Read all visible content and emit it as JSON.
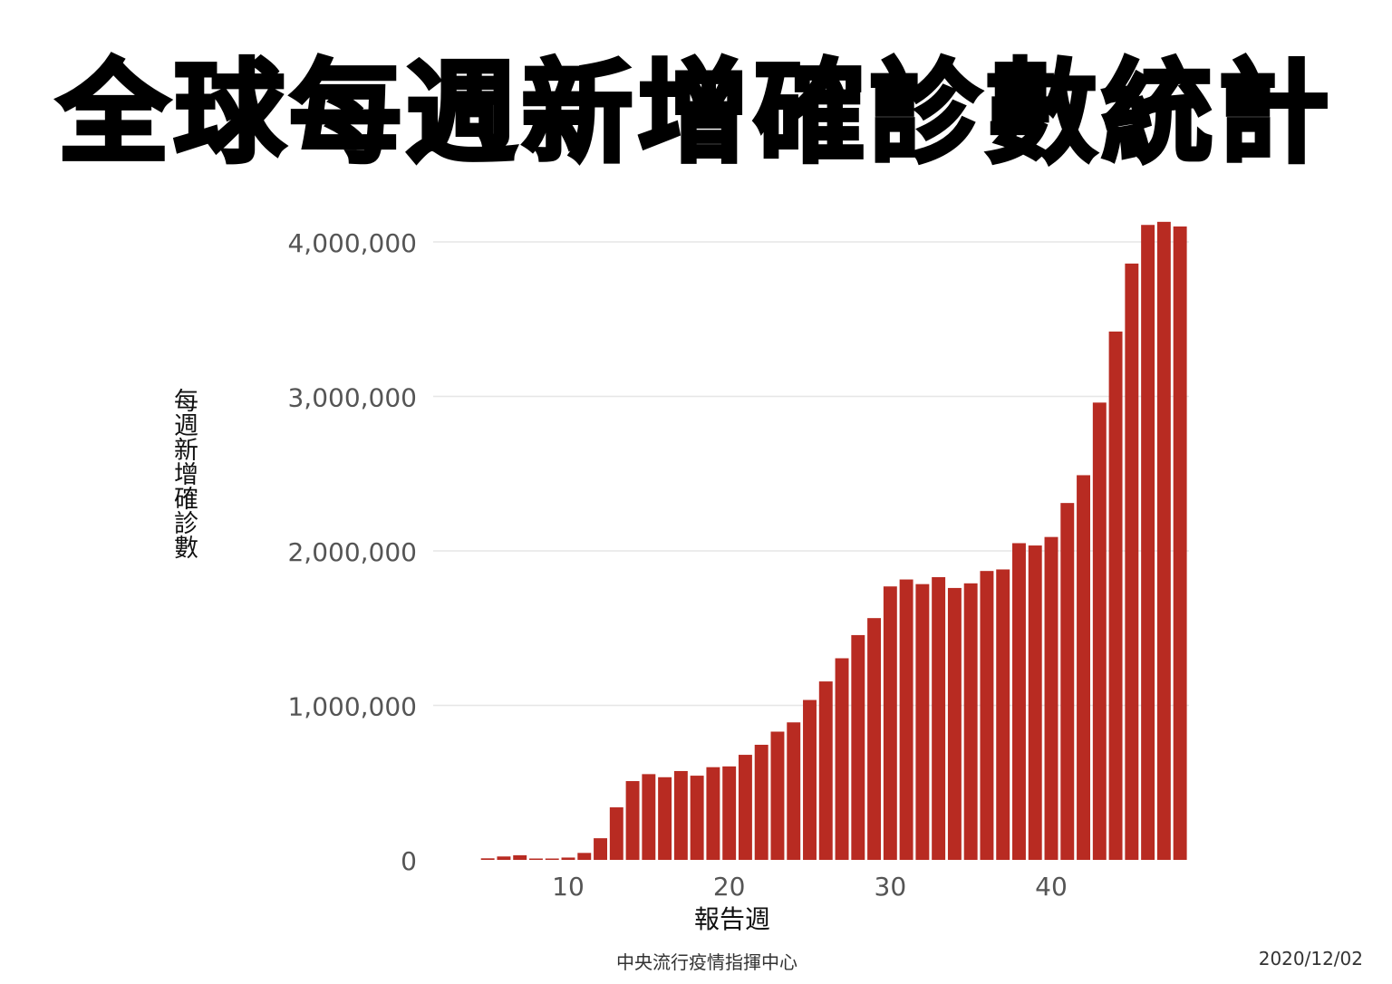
{
  "title": "全球每週新增確診數統計",
  "source": "中央流行疫情指揮中心",
  "date": "2020/12/02",
  "colors": {
    "bar": "#b82b22",
    "grid": "#e6e6e6",
    "tick": "#555555"
  },
  "chart_data": {
    "type": "bar",
    "title": "全球每週新增確診數統計",
    "xlabel": "報告週",
    "ylabel": "每週新增確診數",
    "x": [
      5,
      6,
      7,
      8,
      9,
      10,
      11,
      12,
      13,
      14,
      15,
      16,
      17,
      18,
      19,
      20,
      21,
      22,
      23,
      24,
      25,
      26,
      27,
      28,
      29,
      30,
      31,
      32,
      33,
      34,
      35,
      36,
      37,
      38,
      39,
      40,
      41,
      42,
      43,
      44,
      45,
      46,
      47,
      48
    ],
    "values": [
      10000,
      22000,
      30000,
      8000,
      6000,
      15000,
      45000,
      140000,
      340000,
      510000,
      555000,
      535000,
      575000,
      545000,
      600000,
      605000,
      680000,
      745000,
      830000,
      890000,
      1035000,
      1155000,
      1305000,
      1455000,
      1565000,
      1770000,
      1815000,
      1785000,
      1830000,
      1760000,
      1790000,
      1870000,
      1880000,
      2050000,
      2035000,
      2090000,
      2310000,
      2490000,
      2960000,
      3420000,
      3860000,
      4110000,
      4130000,
      4100000
    ],
    "ylim": [
      0,
      4000000
    ],
    "yticks": [
      0,
      1000000,
      2000000,
      3000000,
      4000000
    ],
    "ytick_labels": [
      "0",
      "1,000,000",
      "2,000,000",
      "3,000,000",
      "4,000,000"
    ],
    "xticks": [
      10,
      20,
      30,
      40
    ],
    "xtick_labels": [
      "10",
      "20",
      "30",
      "40"
    ],
    "grid": true,
    "legend": "none"
  }
}
